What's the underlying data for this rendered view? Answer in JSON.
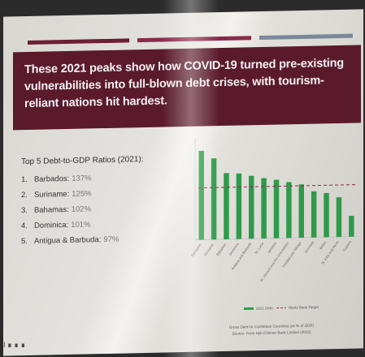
{
  "slide": {
    "banner_text": "These 2021 peaks show how COVID-19 turned pre-existing vulnerabilities into full-blown debt crises, with tourism-reliant nations hit hardest.",
    "list_title": "Top 5 Debt-to-GDP Ratios (2021):",
    "items": [
      {
        "num": "1.",
        "country": "Barbados:",
        "value": "137%"
      },
      {
        "num": "2.",
        "country": "Suriname:",
        "value": "125%"
      },
      {
        "num": "3.",
        "country": "Bahamas:",
        "value": "102%"
      },
      {
        "num": "4.",
        "country": "Dominica:",
        "value": "101%"
      },
      {
        "num": "5.",
        "country": "Antigua & Barbuda:",
        "value": "97%"
      }
    ],
    "footer_marker": "I ∎ ∎ ∎"
  },
  "chart_data": {
    "type": "bar",
    "categories": [
      "Barbados",
      "Suriname",
      "Bahamas",
      "Dominica",
      "Antigua and Barbuda",
      "St. Lucia",
      "Jamaica",
      "St. Vincent and the Grenadines",
      "Trinidad and Tobago",
      "Grenada",
      "Belize",
      "St. Kitts and Nevis",
      "Guyana"
    ],
    "series": [
      {
        "name": "2021 Debt",
        "values": [
          137,
          125,
          102,
          101,
          97,
          93,
          90,
          86,
          82,
          71,
          68,
          61,
          32
        ]
      }
    ],
    "reference_line": {
      "name": "World Bank Target",
      "value": 80,
      "color": "#8a2a4a"
    },
    "bar_color": "#2e9a4a",
    "caption_line1": "Gross Debt for Caribbean Countries (as % of GDP)",
    "caption_line2": "Source: From Hyb Chinner Bank Limited (2022)",
    "ylim": [
      0,
      150
    ]
  }
}
